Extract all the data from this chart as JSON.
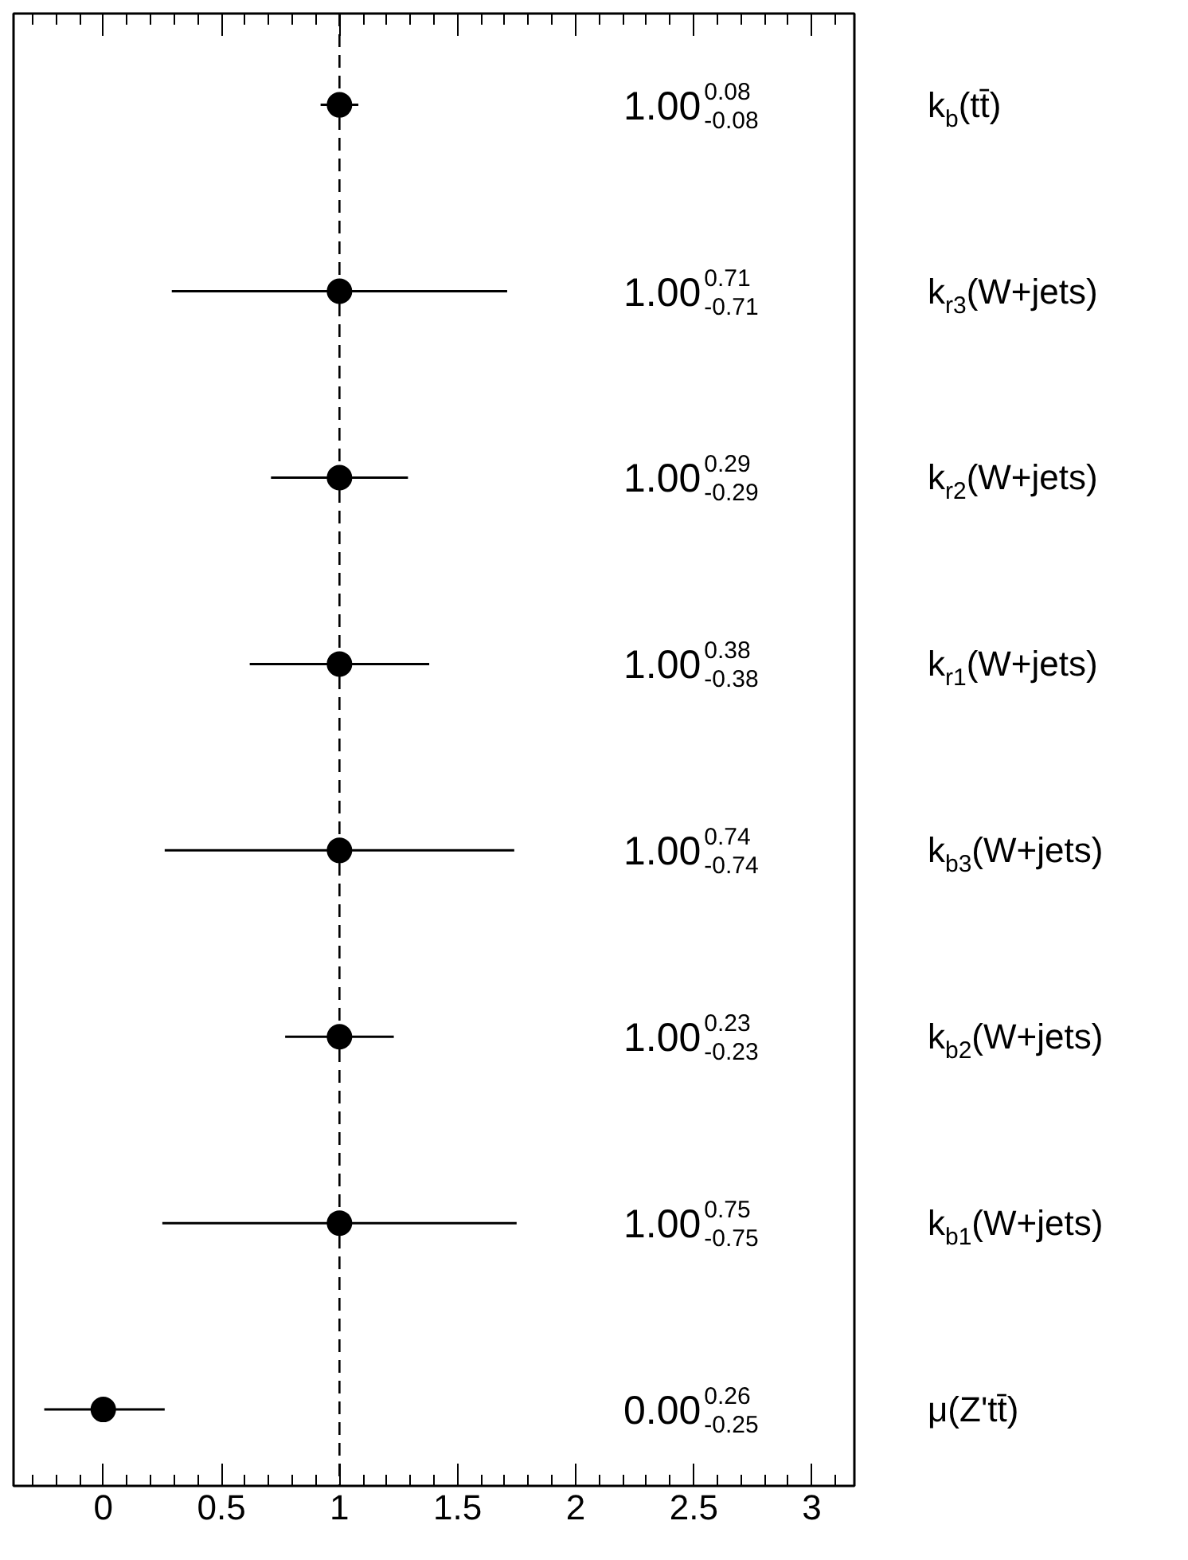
{
  "chart_data": {
    "type": "scatter",
    "orientation": "horizontal",
    "categories": [
      "k$_{b}$(tt̄)",
      "k$_{r3}$(W+jets)",
      "k$_{r2}$(W+jets)",
      "k$_{r1}$(W+jets)",
      "k$_{b3}$(W+jets)",
      "k$_{b2}$(W+jets)",
      "k$_{b1}$(W+jets)",
      "μ(Z'tt̄)"
    ],
    "values": [
      1.0,
      1.0,
      1.0,
      1.0,
      1.0,
      1.0,
      1.0,
      0.0
    ],
    "errors": [
      [
        0.92,
        1.08
      ],
      [
        0.29,
        1.71
      ],
      [
        0.71,
        1.29
      ],
      [
        0.62,
        1.38
      ],
      [
        0.26,
        1.74
      ],
      [
        0.77,
        1.23
      ],
      [
        0.25,
        1.75
      ],
      [
        -0.25,
        0.26
      ]
    ],
    "annotations": [
      "1.00$^{0.08}$$_{-0.08}$",
      "1.00$^{0.71}$$_{-0.71}$",
      "1.00$^{0.29}$$_{-0.29}$",
      "1.00$^{0.38}$$_{-0.38}$",
      "1.00$^{0.74}$$_{-0.74}$",
      "1.00$^{0.23}$$_{-0.23}$",
      "1.00$^{0.75}$$_{-0.75}$",
      "0.00$^{0.26}$$_{-0.25}$"
    ],
    "color": "#000000",
    "marker": "circle",
    "xlim": [
      -0.38,
      3.18
    ],
    "xticks": [
      0,
      0.5,
      1,
      1.5,
      2,
      2.5,
      3
    ],
    "ref_lines": [
      {
        "axis": "x",
        "value": 1,
        "line_style": "dashed",
        "color": "#000000"
      }
    ],
    "tick_labels": "x",
    "grid": false
  }
}
